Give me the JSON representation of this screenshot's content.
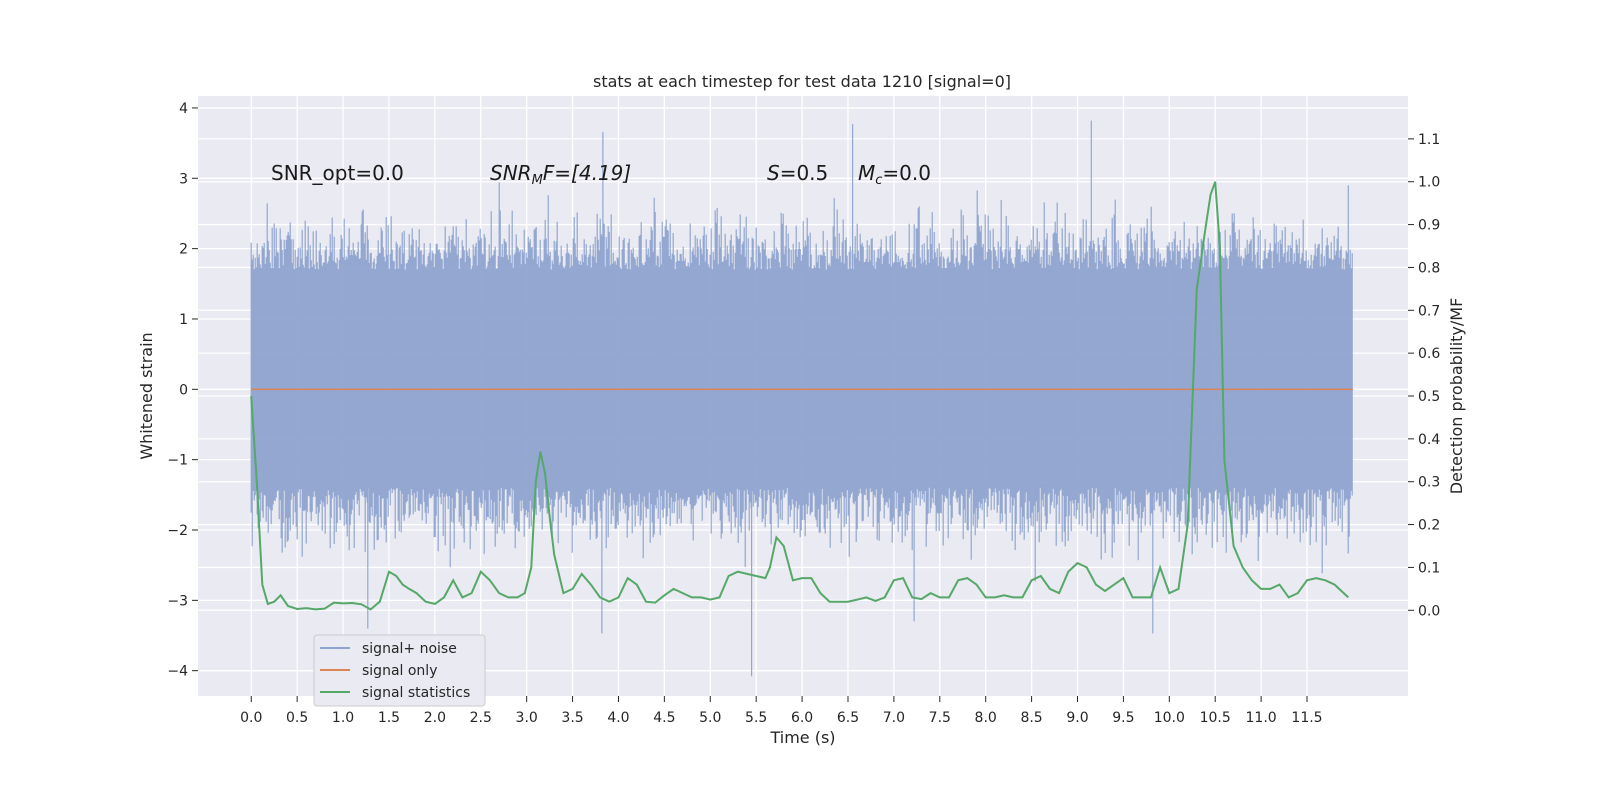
{
  "chart_data": {
    "type": "line",
    "title": "stats at each timestep for test data 1210 [signal=0]",
    "xlabel": "Time (s)",
    "ylabel": "Whitened strain",
    "ylabel_right": "Detection probability/MF",
    "xlim": [
      -0.58,
      12.6
    ],
    "ylim": [
      -4.36,
      4.17
    ],
    "ylim_right": [
      -0.2,
      1.2
    ],
    "x_ticks": [
      0.0,
      0.5,
      1.0,
      1.5,
      2.0,
      2.5,
      3.0,
      3.5,
      4.0,
      4.5,
      5.0,
      5.5,
      6.0,
      6.5,
      7.0,
      7.5,
      8.0,
      8.5,
      9.0,
      9.5,
      10.0,
      10.5,
      11.0,
      11.5
    ],
    "x_tick_labels": [
      "0.0",
      "0.5",
      "1.0",
      "1.5",
      "2.0",
      "2.5",
      "3.0",
      "3.5",
      "4.0",
      "4.5",
      "5.0",
      "5.5",
      "6.0",
      "6.5",
      "7.0",
      "7.5",
      "8.0",
      "8.5",
      "9.0",
      "9.5",
      "10.0",
      "10.5",
      "11.0",
      "11.5"
    ],
    "y_ticks": [
      -4,
      -3,
      -2,
      -1,
      0,
      1,
      2,
      3,
      4
    ],
    "y_tick_labels": [
      "−4",
      "−3",
      "−2",
      "−1",
      "0",
      "1",
      "2",
      "3",
      "4"
    ],
    "y_right_ticks": [
      0.0,
      0.1,
      0.2,
      0.3,
      0.4,
      0.5,
      0.6,
      0.7,
      0.8,
      0.9,
      1.0,
      1.1
    ],
    "y_right_tick_labels": [
      "0.0",
      "0.1",
      "0.2",
      "0.3",
      "0.4",
      "0.5",
      "0.6",
      "0.7",
      "0.8",
      "0.9",
      "1.0",
      "1.1"
    ],
    "grid": true,
    "legend_position": "bottom-left",
    "series": [
      {
        "name": "signal+ noise",
        "axis": "left",
        "color": "#8ea3cf",
        "kind": "noise",
        "x_range": [
          0.0,
          12.0
        ],
        "band_core": [
          -1.4,
          1.7
        ],
        "envelope": [
          -3.47,
          3.82
        ],
        "spikes": [
          [
            3.83,
            3.66
          ],
          [
            3.82,
            -3.47
          ],
          [
            6.55,
            3.77
          ],
          [
            9.15,
            3.82
          ],
          [
            5.45,
            -4.08
          ],
          [
            9.82,
            -3.47
          ],
          [
            7.22,
            -3.3
          ],
          [
            1.27,
            -3.4
          ],
          [
            11.95,
            2.9
          ]
        ]
      },
      {
        "name": "signal only",
        "axis": "left",
        "color": "#dd8452",
        "x": [
          0.0,
          12.0
        ],
        "y": [
          0.0,
          0.0
        ]
      },
      {
        "name": "signal statistics",
        "axis": "right",
        "color": "#55a868",
        "x": [
          0.0,
          0.06,
          0.12,
          0.18,
          0.25,
          0.32,
          0.4,
          0.5,
          0.6,
          0.7,
          0.8,
          0.9,
          1.0,
          1.1,
          1.2,
          1.3,
          1.4,
          1.5,
          1.58,
          1.65,
          1.72,
          1.8,
          1.9,
          2.0,
          2.1,
          2.2,
          2.3,
          2.4,
          2.5,
          2.6,
          2.7,
          2.8,
          2.9,
          2.98,
          3.05,
          3.1,
          3.15,
          3.2,
          3.25,
          3.3,
          3.4,
          3.5,
          3.6,
          3.7,
          3.8,
          3.9,
          4.0,
          4.1,
          4.2,
          4.3,
          4.4,
          4.5,
          4.6,
          4.7,
          4.8,
          4.9,
          5.0,
          5.1,
          5.2,
          5.3,
          5.4,
          5.5,
          5.6,
          5.65,
          5.72,
          5.8,
          5.9,
          6.0,
          6.1,
          6.2,
          6.3,
          6.4,
          6.5,
          6.6,
          6.7,
          6.8,
          6.9,
          7.0,
          7.1,
          7.2,
          7.3,
          7.4,
          7.5,
          7.6,
          7.7,
          7.8,
          7.9,
          8.0,
          8.1,
          8.2,
          8.3,
          8.4,
          8.5,
          8.6,
          8.7,
          8.8,
          8.9,
          9.0,
          9.1,
          9.2,
          9.3,
          9.4,
          9.5,
          9.6,
          9.7,
          9.8,
          9.9,
          10.0,
          10.1,
          10.2,
          10.3,
          10.4,
          10.45,
          10.5,
          10.55,
          10.6,
          10.7,
          10.8,
          10.9,
          11.0,
          11.1,
          11.2,
          11.3,
          11.4,
          11.5,
          11.6,
          11.7,
          11.8,
          11.9,
          11.95
        ],
        "y": [
          0.5,
          0.3,
          0.06,
          0.015,
          0.02,
          0.035,
          0.01,
          0.003,
          0.005,
          0.002,
          0.004,
          0.018,
          0.016,
          0.017,
          0.014,
          0.002,
          0.02,
          0.09,
          0.08,
          0.06,
          0.05,
          0.04,
          0.02,
          0.015,
          0.03,
          0.07,
          0.03,
          0.04,
          0.09,
          0.07,
          0.04,
          0.03,
          0.03,
          0.04,
          0.1,
          0.3,
          0.37,
          0.32,
          0.22,
          0.13,
          0.04,
          0.05,
          0.085,
          0.06,
          0.03,
          0.02,
          0.03,
          0.075,
          0.06,
          0.02,
          0.018,
          0.035,
          0.05,
          0.04,
          0.03,
          0.03,
          0.025,
          0.03,
          0.08,
          0.09,
          0.085,
          0.08,
          0.075,
          0.1,
          0.17,
          0.15,
          0.07,
          0.075,
          0.075,
          0.04,
          0.02,
          0.02,
          0.02,
          0.025,
          0.03,
          0.022,
          0.03,
          0.07,
          0.075,
          0.03,
          0.026,
          0.04,
          0.03,
          0.03,
          0.07,
          0.075,
          0.06,
          0.03,
          0.03,
          0.035,
          0.03,
          0.03,
          0.07,
          0.08,
          0.05,
          0.04,
          0.09,
          0.11,
          0.1,
          0.06,
          0.045,
          0.06,
          0.075,
          0.03,
          0.03,
          0.03,
          0.1,
          0.04,
          0.05,
          0.2,
          0.75,
          0.9,
          0.97,
          1.0,
          0.85,
          0.35,
          0.15,
          0.1,
          0.07,
          0.05,
          0.05,
          0.06,
          0.03,
          0.04,
          0.07,
          0.075,
          0.07,
          0.06,
          0.04,
          0.03
        ]
      }
    ],
    "annotations": [
      {
        "text_parts": [
          "SNR_opt=0.0"
        ],
        "x": 0.2,
        "y": 2.95
      },
      {
        "text_parts": [
          "SNR",
          "M",
          "F=[4.19]"
        ],
        "x": 2.6,
        "y": 2.95
      },
      {
        "text_parts": [
          "S",
          "=0.5"
        ],
        "x": 5.6,
        "y": 2.95
      },
      {
        "text_parts": [
          "M",
          "c",
          "=0.0"
        ],
        "x": 6.6,
        "y": 2.95
      }
    ]
  }
}
